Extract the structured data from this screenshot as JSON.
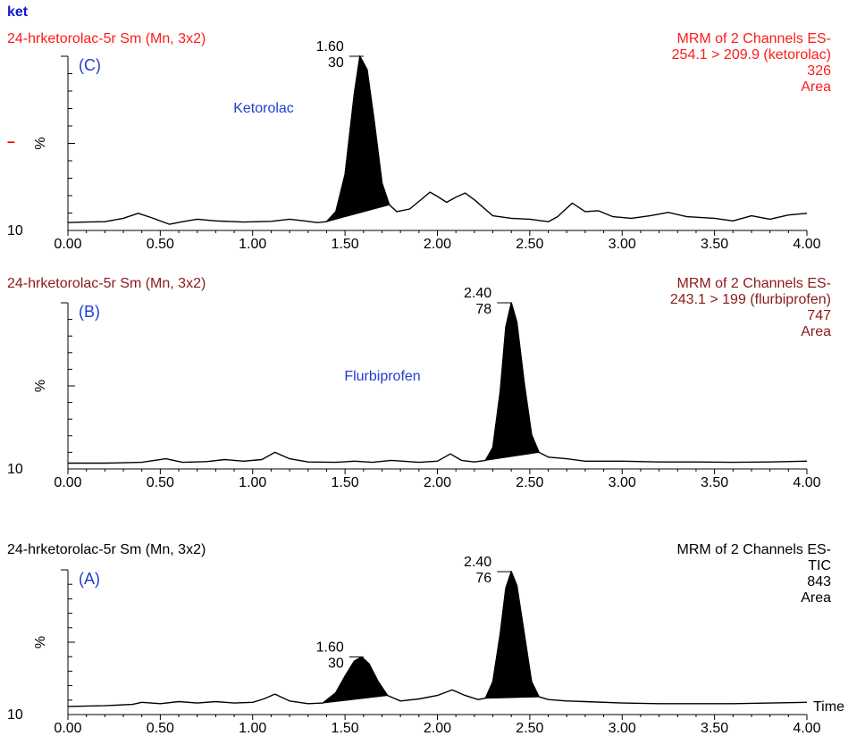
{
  "header": {
    "title": "ket",
    "title_color": "#1515d0"
  },
  "chart_data": [
    {
      "type": "line",
      "panel_label": "(C)",
      "sample": "24-hrketorolac-5r Sm (Mn, 3x2)",
      "info_lines": [
        "MRM of 2 Channels ES-",
        "254.1 > 209.9 (ketorolac)",
        "326",
        "Area"
      ],
      "text_color": "#ff1a1a",
      "annotation": "Ketorolac",
      "ylabel": "%",
      "y_min_label": "10",
      "side_marker": "–",
      "xlim": [
        0,
        4
      ],
      "x_ticks": [
        "0.00",
        "0.50",
        "1.00",
        "1.50",
        "2.00",
        "2.50",
        "3.00",
        "3.50",
        "4.00"
      ],
      "peaks": [
        {
          "rt": "1.60",
          "height_label": "30",
          "x": 1.6,
          "y": 100,
          "filled_range": [
            1.4,
            1.76
          ]
        }
      ],
      "trace": [
        [
          0.0,
          1.5
        ],
        [
          0.1,
          1.8
        ],
        [
          0.2,
          2.0
        ],
        [
          0.3,
          4.0
        ],
        [
          0.38,
          7.0
        ],
        [
          0.45,
          4.5
        ],
        [
          0.55,
          0.5
        ],
        [
          0.62,
          2.0
        ],
        [
          0.7,
          3.5
        ],
        [
          0.8,
          2.5
        ],
        [
          0.95,
          1.8
        ],
        [
          1.1,
          2.2
        ],
        [
          1.2,
          3.5
        ],
        [
          1.28,
          2.5
        ],
        [
          1.35,
          1.5
        ],
        [
          1.4,
          2.0
        ],
        [
          1.45,
          8.0
        ],
        [
          1.5,
          30.0
        ],
        [
          1.55,
          78.0
        ],
        [
          1.58,
          100.0
        ],
        [
          1.62,
          92.0
        ],
        [
          1.66,
          60.0
        ],
        [
          1.7,
          25.0
        ],
        [
          1.74,
          12.0
        ],
        [
          1.78,
          8.0
        ],
        [
          1.85,
          9.5
        ],
        [
          1.9,
          14.0
        ],
        [
          1.96,
          19.5
        ],
        [
          2.0,
          17.0
        ],
        [
          2.05,
          13.5
        ],
        [
          2.1,
          16.5
        ],
        [
          2.15,
          19.0
        ],
        [
          2.2,
          15.0
        ],
        [
          2.3,
          5.5
        ],
        [
          2.4,
          4.0
        ],
        [
          2.5,
          3.5
        ],
        [
          2.6,
          2.0
        ],
        [
          2.65,
          5.0
        ],
        [
          2.73,
          13.0
        ],
        [
          2.8,
          8.0
        ],
        [
          2.87,
          8.5
        ],
        [
          2.95,
          5.0
        ],
        [
          3.05,
          4.0
        ],
        [
          3.15,
          5.5
        ],
        [
          3.25,
          7.5
        ],
        [
          3.35,
          5.0
        ],
        [
          3.5,
          4.0
        ],
        [
          3.6,
          2.5
        ],
        [
          3.7,
          5.5
        ],
        [
          3.8,
          3.5
        ],
        [
          3.9,
          6.0
        ],
        [
          4.0,
          7.0
        ]
      ]
    },
    {
      "type": "line",
      "panel_label": "(B)",
      "sample": "24-hrketorolac-5r Sm (Mn, 3x2)",
      "info_lines": [
        "MRM of 2 Channels ES-",
        "243.1 > 199 (flurbiprofen)",
        "747",
        "Area"
      ],
      "text_color": "#8b1a1a",
      "annotation": "Flurbiprofen",
      "ylabel": "%",
      "y_min_label": "10",
      "xlim": [
        0,
        4
      ],
      "x_ticks": [
        "0.00",
        "0.50",
        "1.00",
        "1.50",
        "2.00",
        "2.50",
        "3.00",
        "3.50",
        "4.00"
      ],
      "peaks": [
        {
          "rt": "2.40",
          "height_label": "78",
          "x": 2.4,
          "y": 100,
          "filled_range": [
            2.26,
            2.55
          ]
        }
      ],
      "trace": [
        [
          0.0,
          0.3
        ],
        [
          0.2,
          0.3
        ],
        [
          0.4,
          0.8
        ],
        [
          0.53,
          3.0
        ],
        [
          0.62,
          0.8
        ],
        [
          0.75,
          1.2
        ],
        [
          0.85,
          2.5
        ],
        [
          0.95,
          1.5
        ],
        [
          1.05,
          2.5
        ],
        [
          1.12,
          7.0
        ],
        [
          1.2,
          3.0
        ],
        [
          1.3,
          1.0
        ],
        [
          1.45,
          0.8
        ],
        [
          1.55,
          1.5
        ],
        [
          1.65,
          0.8
        ],
        [
          1.75,
          2.0
        ],
        [
          1.9,
          0.8
        ],
        [
          2.0,
          1.5
        ],
        [
          2.07,
          6.0
        ],
        [
          2.13,
          2.0
        ],
        [
          2.2,
          1.0
        ],
        [
          2.26,
          2.0
        ],
        [
          2.3,
          10.0
        ],
        [
          2.34,
          45.0
        ],
        [
          2.37,
          85.0
        ],
        [
          2.4,
          100.0
        ],
        [
          2.43,
          88.0
        ],
        [
          2.47,
          50.0
        ],
        [
          2.51,
          18.0
        ],
        [
          2.55,
          7.0
        ],
        [
          2.6,
          4.0
        ],
        [
          2.7,
          3.0
        ],
        [
          2.8,
          1.5
        ],
        [
          3.0,
          1.5
        ],
        [
          3.2,
          1.0
        ],
        [
          3.4,
          1.0
        ],
        [
          3.6,
          0.8
        ],
        [
          3.8,
          1.0
        ],
        [
          4.0,
          1.5
        ]
      ]
    },
    {
      "type": "line",
      "panel_label": "(A)",
      "sample": "24-hrketorolac-5r Sm (Mn, 3x2)",
      "info_lines": [
        "MRM of 2 Channels ES-",
        "TIC",
        "843",
        "Area"
      ],
      "text_color": "#000000",
      "ylabel": "%",
      "y_min_label": "10",
      "xlabel": "Time",
      "xlim": [
        0,
        4
      ],
      "x_ticks": [
        "0.00",
        "0.50",
        "1.00",
        "1.50",
        "2.00",
        "2.50",
        "3.00",
        "3.50",
        "4.00"
      ],
      "peaks": [
        {
          "rt": "1.60",
          "height_label": "30",
          "x": 1.6,
          "y": 38,
          "filled_range": [
            1.38,
            1.76
          ]
        },
        {
          "rt": "2.40",
          "height_label": "76",
          "x": 2.4,
          "y": 100,
          "filled_range": [
            2.26,
            2.55
          ]
        }
      ],
      "trace": [
        [
          0.0,
          2.0
        ],
        [
          0.2,
          2.5
        ],
        [
          0.35,
          3.5
        ],
        [
          0.4,
          5.0
        ],
        [
          0.5,
          4.0
        ],
        [
          0.6,
          5.5
        ],
        [
          0.7,
          4.5
        ],
        [
          0.8,
          5.5
        ],
        [
          0.9,
          4.5
        ],
        [
          1.0,
          5.0
        ],
        [
          1.06,
          7.5
        ],
        [
          1.12,
          11.0
        ],
        [
          1.2,
          6.0
        ],
        [
          1.3,
          4.0
        ],
        [
          1.38,
          4.5
        ],
        [
          1.45,
          12.0
        ],
        [
          1.5,
          24.0
        ],
        [
          1.55,
          35.0
        ],
        [
          1.59,
          38.0
        ],
        [
          1.63,
          33.0
        ],
        [
          1.68,
          20.0
        ],
        [
          1.73,
          10.0
        ],
        [
          1.8,
          6.0
        ],
        [
          1.9,
          7.5
        ],
        [
          2.0,
          10.0
        ],
        [
          2.08,
          14.0
        ],
        [
          2.15,
          10.0
        ],
        [
          2.22,
          7.0
        ],
        [
          2.26,
          8.0
        ],
        [
          2.3,
          20.0
        ],
        [
          2.34,
          55.0
        ],
        [
          2.37,
          88.0
        ],
        [
          2.4,
          100.0
        ],
        [
          2.43,
          90.0
        ],
        [
          2.47,
          55.0
        ],
        [
          2.51,
          20.0
        ],
        [
          2.55,
          9.0
        ],
        [
          2.6,
          7.0
        ],
        [
          2.7,
          6.0
        ],
        [
          2.8,
          5.5
        ],
        [
          3.0,
          4.5
        ],
        [
          3.2,
          4.0
        ],
        [
          3.4,
          4.0
        ],
        [
          3.6,
          4.0
        ],
        [
          3.8,
          4.5
        ],
        [
          4.0,
          5.0
        ]
      ]
    }
  ]
}
